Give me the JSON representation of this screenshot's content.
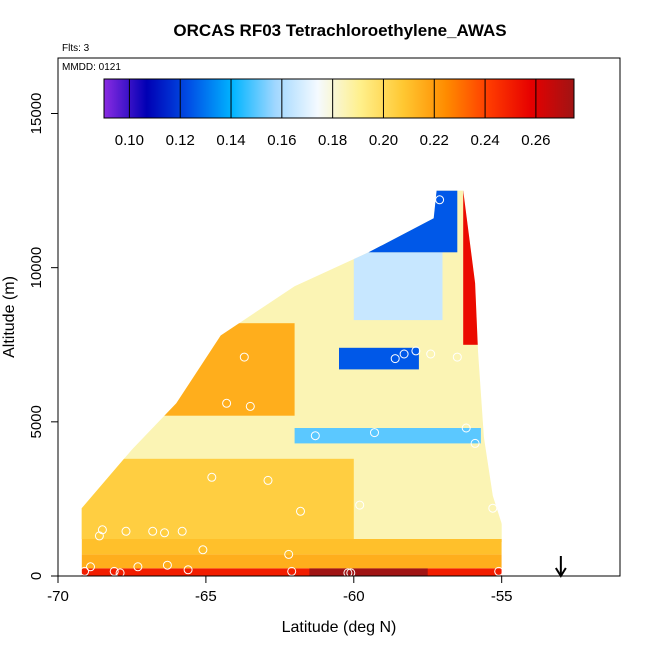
{
  "chart_data": {
    "type": "heatmap",
    "title": "ORCAS RF03 Tetrachloroethylene_AWAS",
    "subtitle": "Flts: 3",
    "annotation": "MMDD: 0121",
    "xlabel": "Latitude (deg N)",
    "ylabel": "Altitude (m)",
    "xlim": [
      -70,
      -51
    ],
    "ylim": [
      0,
      16800
    ],
    "x_ticks": [
      -70,
      -65,
      -60,
      -55
    ],
    "x_tick_labels": [
      "-70",
      "-65",
      "-60",
      "-55"
    ],
    "y_ticks": [
      0,
      5000,
      10000,
      15000
    ],
    "y_tick_labels": [
      "0",
      "5000",
      "10000",
      "15000"
    ],
    "colorbar": {
      "min": 0.09,
      "max": 0.275,
      "ticks": [
        0.1,
        0.12,
        0.14,
        0.16,
        0.18,
        0.2,
        0.22,
        0.24,
        0.26
      ],
      "tick_labels": [
        "0.10",
        "0.12",
        "0.14",
        "0.16",
        "0.18",
        "0.20",
        "0.22",
        "0.24",
        "0.26"
      ],
      "stops": [
        "#8a2be2",
        "#0000b4",
        "#0050e6",
        "#00b4ff",
        "#a0d7ff",
        "#f5faff",
        "#fff08c",
        "#ffc832",
        "#ff8c00",
        "#ff3c00",
        "#e60000",
        "#a01414"
      ]
    },
    "domain_outline": [
      [
        -69.2,
        0
      ],
      [
        -55,
        0
      ],
      [
        -55,
        1100
      ],
      [
        -54.8,
        1100
      ],
      [
        -55.3,
        2600
      ],
      [
        -55.6,
        4500
      ],
      [
        -55.8,
        7300
      ],
      [
        -55.9,
        9500
      ],
      [
        -56.3,
        12500
      ],
      [
        -57.2,
        12500
      ],
      [
        -57.3,
        11600
      ],
      [
        -59.5,
        10500
      ],
      [
        -62,
        9400
      ],
      [
        -64.5,
        7800
      ],
      [
        -66,
        5600
      ],
      [
        -67.5,
        4100
      ],
      [
        -69.2,
        2200
      ]
    ],
    "features": [
      {
        "name": "surface layer",
        "value": 0.25,
        "lat": [
          -69.2,
          -55
        ],
        "alt": [
          0,
          250
        ]
      },
      {
        "name": "surface peak",
        "value": 0.275,
        "lat": [
          -61.5,
          -57.5
        ],
        "alt": [
          0,
          250
        ]
      },
      {
        "name": "lower layer",
        "value": 0.215,
        "lat": [
          -69.2,
          -55
        ],
        "alt": [
          250,
          700
        ]
      },
      {
        "name": "boundary layer",
        "value": 0.21,
        "lat": [
          -69.2,
          -55
        ],
        "alt": [
          700,
          1200
        ]
      },
      {
        "name": "mid-level low",
        "value": 0.125,
        "lat": [
          -60.5,
          -57.8
        ],
        "alt": [
          6700,
          7400
        ]
      },
      {
        "name": "mid-level low band",
        "value": 0.15,
        "lat": [
          -62,
          -55.7
        ],
        "alt": [
          4300,
          4800
        ]
      },
      {
        "name": "upper low",
        "value": 0.125,
        "lat": [
          -59.5,
          -56.5
        ],
        "alt": [
          10500,
          12500
        ]
      },
      {
        "name": "upper edge column",
        "value": 0.255,
        "lat": [
          -56.3,
          -55.8
        ],
        "alt": [
          7500,
          12500
        ]
      }
    ],
    "points": [
      [
        -69.1,
        150
      ],
      [
        -68.9,
        300
      ],
      [
        -68.6,
        1300
      ],
      [
        -68.5,
        1500
      ],
      [
        -68.1,
        150
      ],
      [
        -67.9,
        100
      ],
      [
        -67.7,
        1450
      ],
      [
        -67.3,
        300
      ],
      [
        -66.8,
        1450
      ],
      [
        -66.4,
        1400
      ],
      [
        -66.3,
        350
      ],
      [
        -65.8,
        1450
      ],
      [
        -65.6,
        200
      ],
      [
        -65.1,
        850
      ],
      [
        -64.8,
        3200
      ],
      [
        -64.3,
        5600
      ],
      [
        -63.7,
        7100
      ],
      [
        -63.5,
        5500
      ],
      [
        -62.9,
        3100
      ],
      [
        -62.2,
        700
      ],
      [
        -62.1,
        150
      ],
      [
        -61.8,
        2100
      ],
      [
        -61.3,
        4550
      ],
      [
        -60.2,
        100
      ],
      [
        -60.1,
        100
      ],
      [
        -59.8,
        2300
      ],
      [
        -59.3,
        4650
      ],
      [
        -58.6,
        7050
      ],
      [
        -58.3,
        7200
      ],
      [
        -57.9,
        7300
      ],
      [
        -57.4,
        7200
      ],
      [
        -57.1,
        12200
      ],
      [
        -56.5,
        7100
      ],
      [
        -56.2,
        4800
      ],
      [
        -55.9,
        4300
      ],
      [
        -55.6,
        12500
      ],
      [
        -55.3,
        2200
      ],
      [
        -55.1,
        150
      ]
    ],
    "marker": {
      "type": "arrow",
      "lat": -53.0
    }
  }
}
